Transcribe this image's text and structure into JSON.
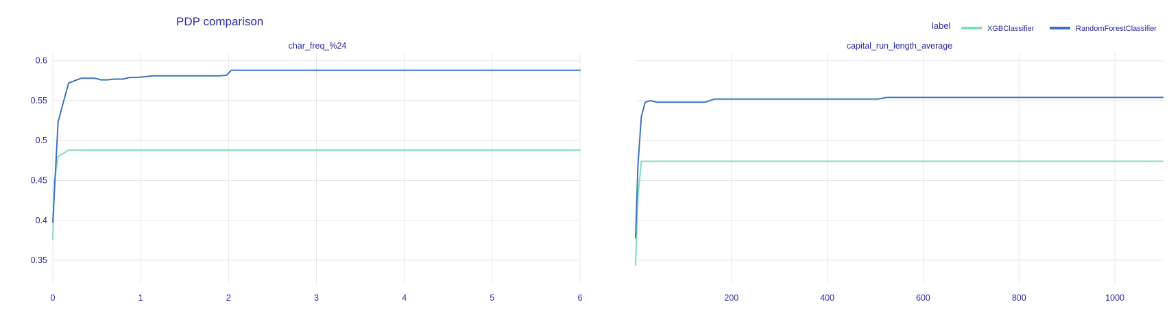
{
  "colors": {
    "text": "#2a2aa0",
    "grid": "#e5e8ec",
    "background": "#ffffff",
    "xgb": "#7fdbc0",
    "rf": "#3b73b9"
  },
  "title": "PDP comparison",
  "legend": {
    "title": "label",
    "entries": [
      {
        "name": "XGBClassifier",
        "color_key": "xgb"
      },
      {
        "name": "RandomForestClassifier",
        "color_key": "rf"
      }
    ]
  },
  "chart_data": [
    {
      "type": "line",
      "title": "char_freq_%24",
      "xlabel": "",
      "ylabel": "",
      "xlim": [
        0,
        6
      ],
      "ylim": [
        0.32,
        0.61
      ],
      "x_ticks": [
        0,
        1,
        2,
        3,
        4,
        5,
        6
      ],
      "y_ticks": [
        0.35,
        0.4,
        0.45,
        0.5,
        0.55,
        0.6
      ],
      "y_tick_labels": [
        "0.35",
        "0.4",
        "0.45",
        "0.5",
        "0.55",
        "0.6"
      ],
      "grid": true,
      "series": [
        {
          "name": "XGBClassifier",
          "color_key": "xgb",
          "x": [
            0,
            0.02,
            0.06,
            0.18,
            6
          ],
          "y": [
            0.376,
            0.45,
            0.48,
            0.488,
            0.488
          ]
        },
        {
          "name": "RandomForestClassifier",
          "color_key": "rf",
          "x": [
            0,
            0.06,
            0.12,
            0.18,
            0.25,
            0.32,
            0.4,
            0.48,
            0.55,
            0.62,
            0.7,
            0.8,
            0.87,
            0.95,
            1.05,
            1.13,
            1.3,
            1.6,
            1.9,
            1.98,
            2.03,
            2.5,
            3,
            4,
            5,
            6
          ],
          "y": [
            0.398,
            0.523,
            0.548,
            0.572,
            0.575,
            0.578,
            0.578,
            0.578,
            0.576,
            0.576,
            0.577,
            0.577,
            0.579,
            0.579,
            0.58,
            0.581,
            0.581,
            0.581,
            0.581,
            0.582,
            0.588,
            0.588,
            0.588,
            0.588,
            0.588,
            0.588
          ]
        }
      ]
    },
    {
      "type": "line",
      "title": "capital_run_length_average",
      "xlabel": "",
      "ylabel": "",
      "xlim": [
        0,
        1100
      ],
      "ylim": [
        0.32,
        0.61
      ],
      "x_ticks": [
        200,
        400,
        600,
        800,
        1000
      ],
      "y_ticks": [
        0.35,
        0.4,
        0.45,
        0.5,
        0.55,
        0.6
      ],
      "y_tick_labels": [],
      "grid": true,
      "series": [
        {
          "name": "XGBClassifier",
          "color_key": "xgb",
          "x": [
            0,
            5,
            12,
            1100
          ],
          "y": [
            0.344,
            0.43,
            0.474,
            0.474
          ]
        },
        {
          "name": "RandomForestClassifier",
          "color_key": "rf",
          "x": [
            0,
            5,
            12,
            20,
            30,
            45,
            60,
            100,
            145,
            165,
            300,
            505,
            525,
            600,
            800,
            1000,
            1100
          ],
          "y": [
            0.378,
            0.47,
            0.53,
            0.548,
            0.55,
            0.548,
            0.548,
            0.548,
            0.548,
            0.552,
            0.552,
            0.552,
            0.554,
            0.554,
            0.554,
            0.554,
            0.554
          ]
        }
      ]
    }
  ]
}
